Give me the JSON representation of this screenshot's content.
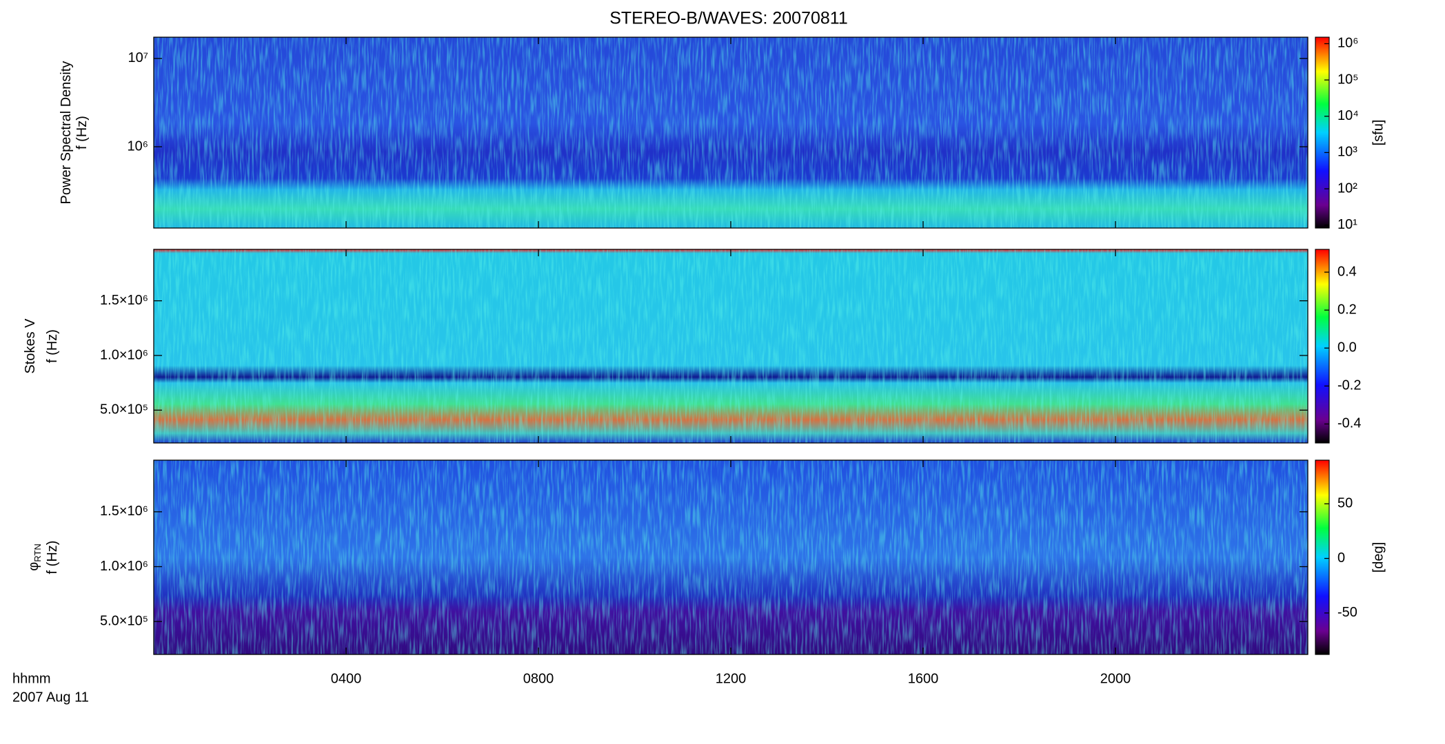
{
  "chart_data": [
    {
      "type": "spectrogram",
      "title": "STEREO-B/WAVES: 20070811",
      "ylabel": [
        "Power Spectral Density",
        "f (Hz)"
      ],
      "log_y": true,
      "ylim": [
        120000,
        17400000
      ],
      "yticks": [
        {
          "value": 1000000,
          "label": "10⁶"
        },
        {
          "value": 10000000,
          "label": "10⁷"
        }
      ],
      "zlabel": "[sfu]",
      "log_z": true,
      "zlim": [
        8.3,
        1510000
      ],
      "zticks": [
        {
          "value": 10,
          "label": "10¹"
        },
        {
          "value": 100,
          "label": "10²"
        },
        {
          "value": 1000,
          "label": "10³"
        },
        {
          "value": 10000,
          "label": "10⁴"
        },
        {
          "value": 100000,
          "label": "10⁵"
        },
        {
          "value": 1000000,
          "label": "10⁶"
        }
      ]
    },
    {
      "type": "spectrogram",
      "ylabel": [
        "Stokes V",
        "f (Hz)"
      ],
      "log_y": false,
      "ylim": [
        200000,
        1970000
      ],
      "yticks": [
        {
          "value": 500000,
          "label": "5.0×10⁵"
        },
        {
          "value": 1000000,
          "label": "1.0×10⁶"
        },
        {
          "value": 1500000,
          "label": "1.5×10⁶"
        }
      ],
      "zlim": [
        -0.5,
        0.52
      ],
      "zticks": [
        0.4,
        0.2,
        {
          "value": 0,
          "label": "0.0"
        },
        -0.2,
        -0.4
      ]
    },
    {
      "type": "spectrogram",
      "ylabel": [
        "φ",
        "f (Hz)"
      ],
      "ylabel_subscript": "RTN",
      "log_y": false,
      "ylim": [
        200000,
        1970000
      ],
      "yticks": [
        {
          "value": 500000,
          "label": "5.0×10⁵"
        },
        {
          "value": 1000000,
          "label": "1.0×10⁶"
        },
        {
          "value": 1500000,
          "label": "1.5×10⁶"
        }
      ],
      "zlabel": "[deg]",
      "zlim": [
        -88,
        90
      ],
      "zticks": [
        50,
        0,
        -50
      ],
      "xlabel": "hhmm",
      "date": "2007 Aug 11",
      "xlim": [
        0,
        24
      ],
      "xticks": [
        {
          "value": 4,
          "label": "0400"
        },
        {
          "value": 8,
          "label": "0800"
        },
        {
          "value": 12,
          "label": "1200"
        },
        {
          "value": 16,
          "label": "1600"
        },
        {
          "value": 20,
          "label": "2000"
        }
      ]
    }
  ]
}
